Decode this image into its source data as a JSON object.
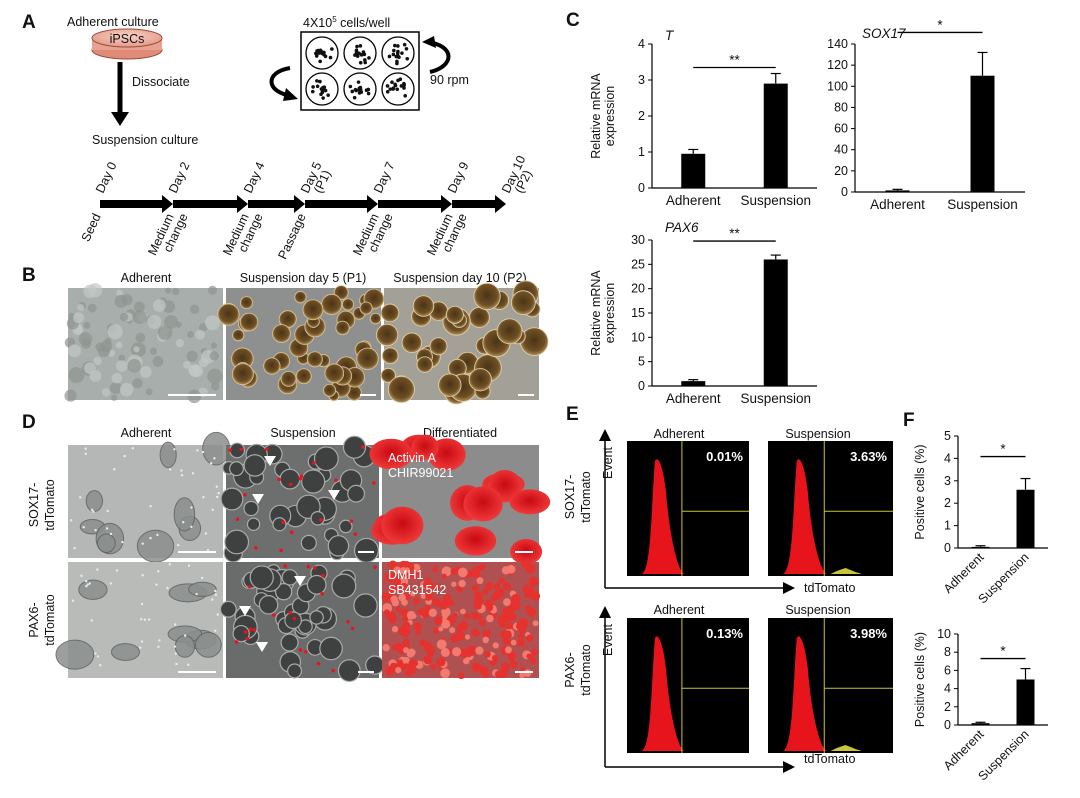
{
  "panels": {
    "A": {
      "letter": "A",
      "adherent_culture": "Adherent culture",
      "dish": "iPSCs",
      "dissociate": "Dissociate",
      "suspension_culture": "Suspension  culture",
      "cells_per_well_base": "4X10",
      "cells_per_well_exp": "5",
      "cells_per_well_tail": " cells/well",
      "rpm": "90 rpm",
      "timeline": [
        {
          "day": "Day 0",
          "sub": "",
          "event": "Seed",
          "event2": ""
        },
        {
          "day": "Day 2",
          "sub": "",
          "event": "Medium",
          "event2": "change"
        },
        {
          "day": "Day 4",
          "sub": "",
          "event": "Medium",
          "event2": "change"
        },
        {
          "day": "Day 5",
          "sub": "(P1)",
          "event": "Passage",
          "event2": ""
        },
        {
          "day": "Day 7",
          "sub": "",
          "event": "Medium",
          "event2": "change"
        },
        {
          "day": "Day 9",
          "sub": "",
          "event": "Medium",
          "event2": "change"
        },
        {
          "day": "Day 10",
          "sub": "(P2)",
          "event": "",
          "event2": ""
        }
      ]
    },
    "B": {
      "letter": "B",
      "titles": [
        "Adherent",
        "Suspension day 5 (P1)",
        "Suspension day 10 (P2)"
      ]
    },
    "D": {
      "letter": "D",
      "col_titles": [
        "Adherent",
        "Suspension",
        "Differentiated"
      ],
      "row_labels": [
        {
          "line1": "SOX17-",
          "line2": "tdTomato"
        },
        {
          "line1": "PAX6-",
          "line2": "tdTomato"
        }
      ],
      "overlay_row1": [
        "Activin A",
        "CHIR99021"
      ],
      "overlay_row2": [
        "DMH1",
        "SB431542"
      ]
    },
    "E": {
      "letter": "E",
      "col_titles": [
        "Adherent",
        "Suspension"
      ],
      "row_labels": [
        {
          "line1": "SOX17-",
          "line2": "tdTomato"
        },
        {
          "line1": "PAX6-",
          "line2": "tdTomato"
        }
      ],
      "y_axis": "Event",
      "x_axis": "tdTomato",
      "percents": [
        [
          "0.01%",
          "3.63%"
        ],
        [
          "0.13%",
          "3.98%"
        ]
      ]
    },
    "C": {
      "letter": "C"
    },
    "F": {
      "letter": "F"
    }
  },
  "chart_data": [
    {
      "id": "C-T",
      "type": "bar",
      "title": "T",
      "categories": [
        "Adherent",
        "Suspension"
      ],
      "values": [
        0.95,
        2.9
      ],
      "errors": [
        0.12,
        0.28
      ],
      "ylim": [
        0,
        4
      ],
      "yticks": [
        "0",
        "1",
        "2",
        "3",
        "4"
      ],
      "ylabel": [
        "Relative mRNA",
        "expression"
      ],
      "significance": "**"
    },
    {
      "id": "C-SOX17",
      "type": "bar",
      "title": "SOX17",
      "categories": [
        "Adherent",
        "Suspension"
      ],
      "values": [
        1.5,
        110
      ],
      "errors": [
        1.0,
        22
      ],
      "ylim": [
        0,
        140
      ],
      "yticks": [
        "0",
        "20",
        "40",
        "60",
        "80",
        "100",
        "120",
        "140"
      ],
      "ylabel": [
        "",
        ""
      ],
      "significance": "*"
    },
    {
      "id": "C-PAX6",
      "type": "bar",
      "title": "PAX6",
      "categories": [
        "Adherent",
        "Suspension"
      ],
      "values": [
        1.0,
        26.0
      ],
      "errors": [
        0.3,
        0.9
      ],
      "ylim": [
        0,
        30
      ],
      "yticks": [
        "0",
        "5",
        "10",
        "15",
        "20",
        "25",
        "30"
      ],
      "ylabel": [
        "Relative mRNA",
        "expression"
      ],
      "significance": "**"
    },
    {
      "id": "F-SOX17",
      "type": "bar",
      "title": "",
      "categories": [
        "Adherent",
        "Suspension"
      ],
      "values": [
        0.05,
        2.6
      ],
      "errors": [
        0.05,
        0.5
      ],
      "ylim": [
        0,
        5
      ],
      "yticks": [
        "0",
        "1",
        "2",
        "3",
        "4",
        "5"
      ],
      "ylabel": [
        "Positive cells (%)",
        ""
      ],
      "significance": "*"
    },
    {
      "id": "F-PAX6",
      "type": "bar",
      "title": "",
      "categories": [
        "Adherent",
        "Suspension"
      ],
      "values": [
        0.2,
        5.0
      ],
      "errors": [
        0.1,
        1.2
      ],
      "ylim": [
        0,
        10
      ],
      "yticks": [
        "0",
        "2",
        "4",
        "6",
        "8",
        "10"
      ],
      "ylabel": [
        "Positive cells (%)",
        ""
      ],
      "significance": "*"
    }
  ],
  "colors": {
    "bar": "#000000",
    "tdtomato": "#e8141b",
    "flow_bg": "#000000",
    "gate": "#c9c43a",
    "brightfield": "#9aa09c",
    "colony": "#6b4a22"
  }
}
